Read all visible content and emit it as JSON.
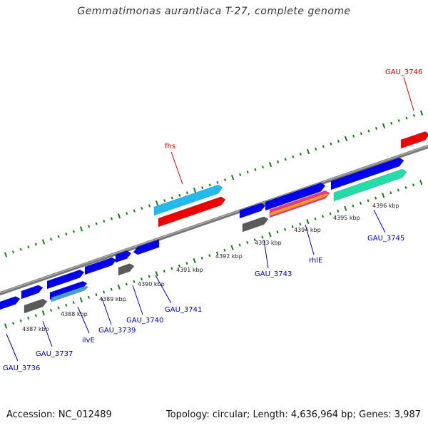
{
  "title": "Gemmatimonas aurantiaca T-27, complete genome",
  "footer": {
    "accession": "Accession: NC_012489",
    "topology": "Topology: circular; Length: 4,636,964 bp; Genes: 3,987"
  },
  "colors": {
    "backbone": "#808080",
    "tick": "#1a7a1a",
    "blue_gene": "#0000ee",
    "red_gene": "#ee0000",
    "gray_gene": "#5a5a5a",
    "cyan_gene": "#22bbee",
    "teal_gene": "#22ddaa",
    "magenta_gene": "#ee3388",
    "label_blue": "#0000bb",
    "label_red": "#cc0000"
  },
  "kbp_labels": [
    "4387 kbp",
    "4388 kbp",
    "4389 kbp",
    "4390 kbp",
    "4391 kbp",
    "4392 kbp",
    "4393 kbp",
    "4394 kbp",
    "4395 kbp",
    "4396 kbp"
  ],
  "gene_labels": [
    {
      "id": "fhs",
      "text": "fhs",
      "color": "red"
    },
    {
      "id": "gau3746",
      "text": "GAU_3746",
      "color": "red"
    },
    {
      "id": "gau3736",
      "text": "GAU_3736",
      "color": "blue"
    },
    {
      "id": "gau3737",
      "text": "GAU_3737",
      "color": "blue"
    },
    {
      "id": "ilve",
      "text": "ilvE",
      "color": "blue"
    },
    {
      "id": "gau3739",
      "text": "GAU_3739",
      "color": "blue"
    },
    {
      "id": "gau3740",
      "text": "GAU_3740",
      "color": "blue"
    },
    {
      "id": "gau3741",
      "text": "GAU_3741",
      "color": "blue"
    },
    {
      "id": "gau3743",
      "text": "GAU_3743",
      "color": "blue"
    },
    {
      "id": "rhle",
      "text": "rhlE",
      "color": "blue"
    },
    {
      "id": "gau3745",
      "text": "GAU_3745",
      "color": "blue"
    }
  ]
}
